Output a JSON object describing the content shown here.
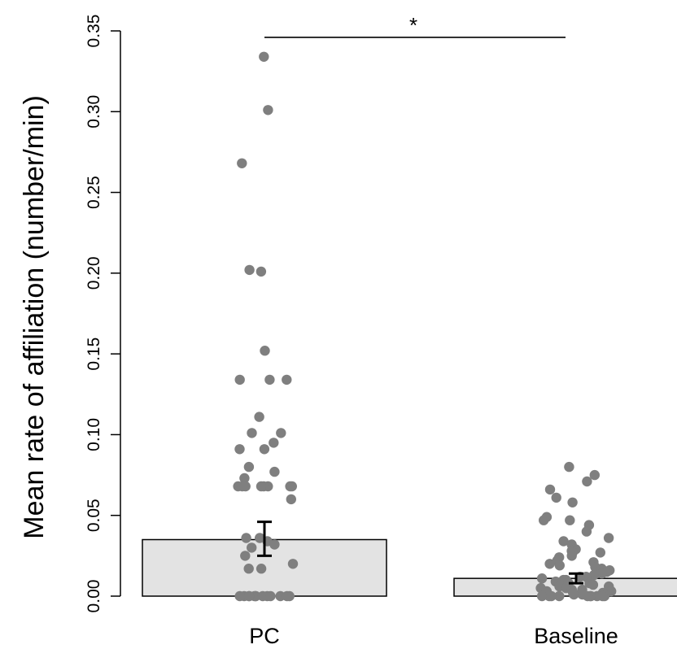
{
  "chart_data": {
    "type": "bar",
    "title": "",
    "xlabel": "",
    "ylabel": "Mean rate of affiliation (number/min)",
    "ylim": [
      0,
      0.35
    ],
    "yticks": [
      "0.00",
      "0.05",
      "0.10",
      "0.15",
      "0.20",
      "0.25",
      "0.30",
      "0.35"
    ],
    "grid": false,
    "legend": "none",
    "categories": [
      "PC",
      "Baseline"
    ],
    "values": [
      0.035,
      0.011
    ],
    "error": [
      {
        "low": 0.025,
        "high": 0.046
      },
      {
        "low": 0.008,
        "high": 0.014
      }
    ],
    "significance": {
      "between": [
        "PC",
        "Baseline"
      ],
      "label": "*",
      "y": 0.346
    },
    "points": [
      {
        "category": "PC",
        "values": [
          0.334,
          0.301,
          0.268,
          0.202,
          0.201,
          0.152,
          0.134,
          0.134,
          0.134,
          0.111,
          0.101,
          0.101,
          0.095,
          0.091,
          0.091,
          0.08,
          0.077,
          0.073,
          0.068,
          0.068,
          0.068,
          0.068,
          0.068,
          0.068,
          0.068,
          0.068,
          0.06,
          0.036,
          0.036,
          0.034,
          0.032,
          0.03,
          0.025,
          0.02,
          0.017,
          0.017,
          0,
          0,
          0,
          0,
          0,
          0,
          0,
          0,
          0,
          0,
          0,
          0,
          0
        ]
      },
      {
        "category": "Baseline",
        "values": [
          0.08,
          0.075,
          0.071,
          0.066,
          0.061,
          0.058,
          0.049,
          0.047,
          0.047,
          0.044,
          0.04,
          0.036,
          0.034,
          0.032,
          0.029,
          0.028,
          0.027,
          0.027,
          0.025,
          0.024,
          0.022,
          0.021,
          0.02,
          0.019,
          0.018,
          0.017,
          0.016,
          0.015,
          0.014,
          0.013,
          0.012,
          0.012,
          0.011,
          0.01,
          0.01,
          0.009,
          0.008,
          0.008,
          0.007,
          0.006,
          0.006,
          0.005,
          0.005,
          0.004,
          0.004,
          0.003,
          0.003,
          0.002,
          0.002,
          0.001,
          0.001,
          0,
          0,
          0,
          0,
          0,
          0,
          0,
          0,
          0,
          0
        ]
      }
    ]
  },
  "colors": {
    "bar_fill": "#e3e3e3",
    "bar_stroke": "#000000",
    "point": "#7f7f7f",
    "error_bar": "#000000"
  }
}
